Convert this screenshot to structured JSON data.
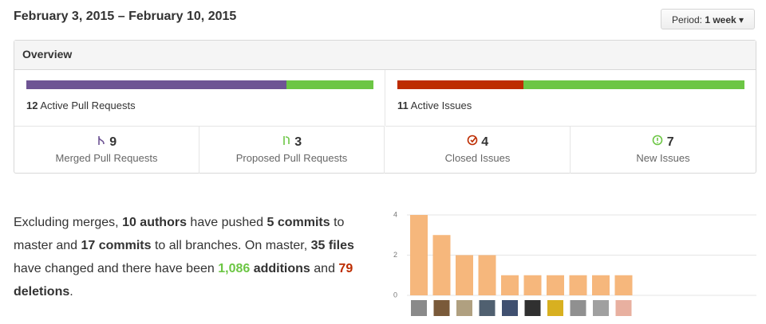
{
  "header": {
    "date_range": "February 3, 2015 – February 10, 2015",
    "period_label": "Period:",
    "period_value": "1 week"
  },
  "overview": {
    "title": "Overview",
    "pull_requests": {
      "count": 12,
      "label": "Active Pull Requests",
      "merged": 9,
      "merged_label": "Merged Pull Requests",
      "merged_color": "#6e5494",
      "proposed": 3,
      "proposed_label": "Proposed Pull Requests",
      "proposed_color": "#6cc644"
    },
    "issues": {
      "count": 11,
      "label": "Active Issues",
      "closed": 4,
      "closed_label": "Closed Issues",
      "closed_color": "#bd2c00",
      "new": 7,
      "new_label": "New Issues",
      "new_color": "#6cc644"
    }
  },
  "summary": [
    {
      "text": "Excluding merges, "
    },
    {
      "text": "10 authors",
      "bold": true
    },
    {
      "text": " have pushed "
    },
    {
      "text": "5 commits",
      "bold": true
    },
    {
      "text": " to master and "
    },
    {
      "text": "17 commits",
      "bold": true
    },
    {
      "text": " to all branches. On master, "
    },
    {
      "text": "35 files",
      "bold": true
    },
    {
      "text": " have changed and there have been "
    },
    {
      "text": "1,086",
      "bold": true,
      "color": "#6cc644"
    },
    {
      "text": " additions",
      "bold": true
    },
    {
      "text": " and "
    },
    {
      "text": "79",
      "bold": true,
      "color": "#bd2c00"
    },
    {
      "text": " deletions",
      "bold": true
    },
    {
      "text": "."
    }
  ],
  "chart_data": {
    "type": "bar",
    "values": [
      4,
      3,
      2,
      2,
      1,
      1,
      1,
      1,
      1,
      1
    ],
    "color": "#f6b77c",
    "ylim": [
      0,
      4
    ],
    "yticks": [
      0,
      2,
      4
    ],
    "grid": true
  }
}
